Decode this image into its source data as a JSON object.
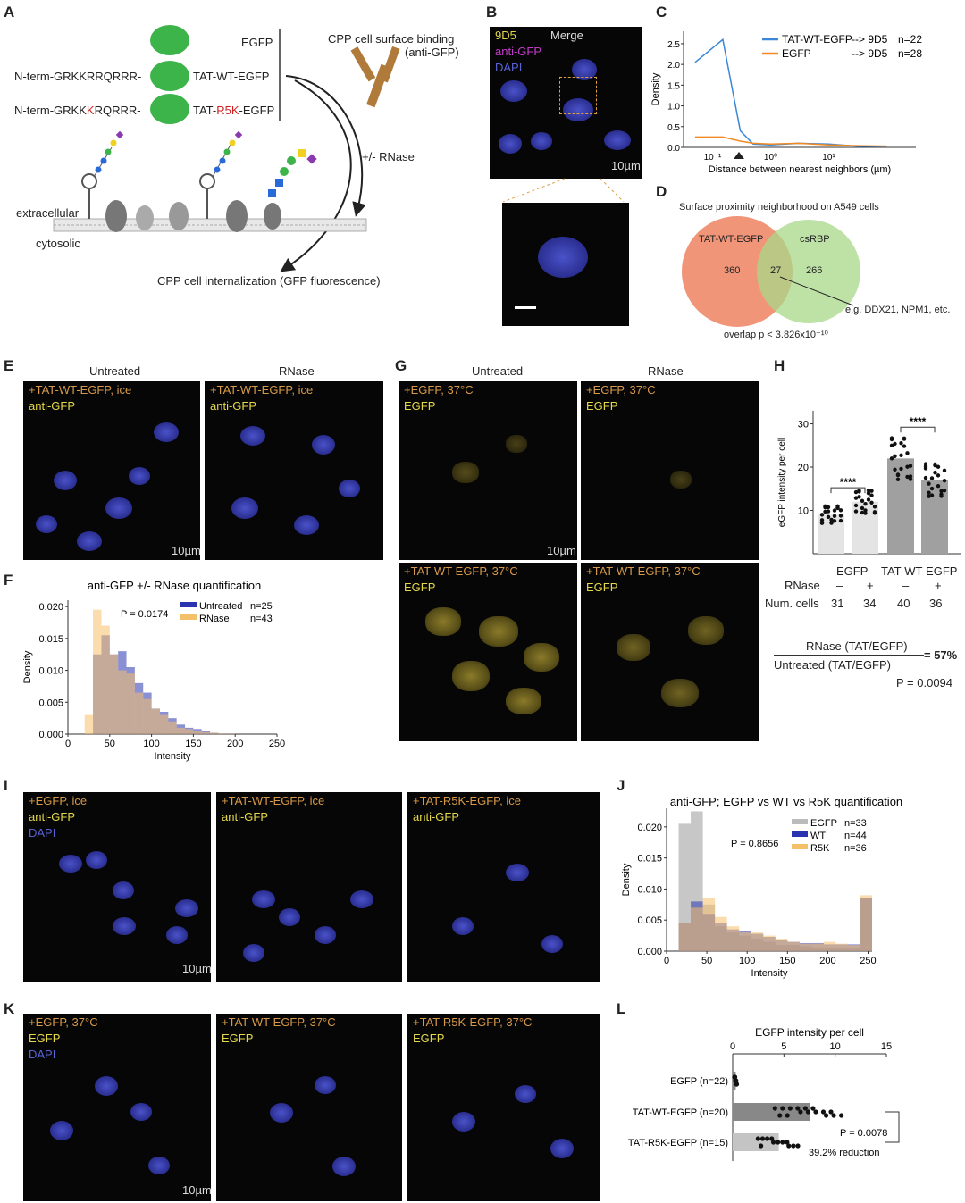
{
  "panels": {
    "A": {
      "label": "A",
      "egfp": "EGFP",
      "tat_wt": "TAT-WT-EGFP",
      "tat_r5k_prefix": "TAT-",
      "tat_r5k_mut": "R5K",
      "tat_r5k_suffix": "-EGFP",
      "seq1": "N-term-GRKKRRQRRR-",
      "seq2_pre": "N-term-GRKK",
      "seq2_mut": "K",
      "seq2_post": "RQRRR-",
      "surface_binding": "CPP cell surface binding",
      "anti_gfp": "(anti-GFP)",
      "rnase": "+/- RNase",
      "extracellular": "extracellular",
      "cytosolic": "cytosolic",
      "internalization": "CPP cell internalization (GFP fluorescence)"
    },
    "B": {
      "label": "B",
      "ch1": "9D5",
      "ch2": "anti-GFP",
      "ch3": "DAPI",
      "merge": "Merge",
      "scale": "10µm"
    },
    "C": {
      "label": "C",
      "ylabel": "Density",
      "xlabel": "Distance between nearest neighbors (µm)",
      "legend": [
        {
          "name": "TAT-WT-EGFP",
          "desc": "--> 9D5",
          "n": "n=22",
          "color": "#3a86d8"
        },
        {
          "name": "EGFP",
          "desc": "--> 9D5",
          "n": "n=28",
          "color": "#f08a24"
        }
      ],
      "yticks": [
        "0.0",
        "0.5",
        "1.0",
        "1.5",
        "2.0",
        "2.5"
      ],
      "xticks": [
        "10⁻¹",
        "10⁰",
        "10¹"
      ]
    },
    "D": {
      "label": "D",
      "title": "Surface proximity neighborhood on A549 cells",
      "left": "TAT-WT-EGFP",
      "right": "csRBP",
      "left_n": "360",
      "overlap_n": "27",
      "right_n": "266",
      "example": "e.g. DDX21, NPM1, etc.",
      "pval": "overlap p < 3.826x10⁻¹⁰"
    },
    "E": {
      "label": "E",
      "col1": "Untreated",
      "col2": "RNase",
      "l1": "+TAT-WT-EGFP, ice",
      "l2": "anti-GFP",
      "scale": "10µm"
    },
    "F": {
      "label": "F",
      "title": "anti-GFP +/- RNase quantification",
      "pval": "P = 0.0174",
      "ylabel": "Density",
      "xlabel": "Intensity",
      "legend": [
        {
          "name": "Untreated",
          "n": "n=25"
        },
        {
          "name": "RNase",
          "n": "n=43"
        }
      ],
      "yticks": [
        "0.000",
        "0.005",
        "0.010",
        "0.015",
        "0.020"
      ],
      "xticks": [
        "0",
        "50",
        "100",
        "150",
        "200",
        "250"
      ]
    },
    "G": {
      "label": "G",
      "col1": "Untreated",
      "col2": "RNase",
      "r1l1": "+EGFP, 37°C",
      "r1l2": "EGFP",
      "r2l1": "+TAT-WT-EGFP, 37°C",
      "r2l2": "EGFP",
      "scale": "10µm"
    },
    "H": {
      "label": "H",
      "ylabel": "eGFP intensity per cell",
      "yticks": [
        "10",
        "20",
        "30"
      ],
      "sig1": "****",
      "sig2": "****",
      "groups": [
        "EGFP",
        "TAT-WT-EGFP"
      ],
      "rnase_label": "RNase",
      "rnase": [
        "–",
        "+",
        "–",
        "+"
      ],
      "cells_label": "Num. cells",
      "cells": [
        "31",
        "34",
        "40",
        "36"
      ],
      "ratio_num": "RNase (TAT/EGFP)",
      "ratio_den": "Untreated (TAT/EGFP)",
      "ratio_val": "= 57%",
      "pval": "P = 0.0094"
    },
    "I": {
      "label": "I",
      "p1": "+EGFP, ice",
      "p2": "+TAT-WT-EGFP, ice",
      "p3": "+TAT-R5K-EGFP, ice",
      "ch1": "anti-GFP",
      "ch2": "DAPI",
      "scale": "10µm"
    },
    "J": {
      "label": "J",
      "title": "anti-GFP; EGFP vs WT vs R5K quantification",
      "pval": "P = 0.8656",
      "ylabel": "Density",
      "xlabel": "Intensity",
      "legend": [
        {
          "name": "EGFP",
          "n": "n=33"
        },
        {
          "name": "WT",
          "n": "n=44"
        },
        {
          "name": "R5K",
          "n": "n=36"
        }
      ],
      "yticks": [
        "0.000",
        "0.005",
        "0.010",
        "0.015",
        "0.020"
      ],
      "xticks": [
        "0",
        "50",
        "100",
        "150",
        "200",
        "250"
      ]
    },
    "K": {
      "label": "K",
      "p1": "+EGFP, 37°C",
      "p2": "+TAT-WT-EGFP, 37°C",
      "p3": "+TAT-R5K-EGFP, 37°C",
      "ch1": "EGFP",
      "ch2": "DAPI",
      "scale": "10µm"
    },
    "L": {
      "label": "L",
      "title": "EGFP intensity per cell",
      "xticks": [
        "0",
        "5",
        "10",
        "15"
      ],
      "rows": [
        "EGFP (n=22)",
        "TAT-WT-EGFP (n=20)",
        "TAT-R5K-EGFP (n=15)"
      ],
      "pval": "P = 0.0078",
      "reduction": "39.2% reduction"
    }
  },
  "chart_data": [
    {
      "id": "C",
      "type": "line",
      "xscale": "log",
      "xlabel": "Distance between nearest neighbors (µm)",
      "ylabel": "Density",
      "ylim": [
        0,
        2.8
      ],
      "series": [
        {
          "name": "TAT-WT-EGFP --> 9D5 n=22",
          "color": "#3a86d8",
          "x": [
            0.05,
            0.15,
            0.3,
            0.5,
            1,
            3,
            10,
            30,
            100
          ],
          "values": [
            2.05,
            2.6,
            0.4,
            0.08,
            0.06,
            0.1,
            0.08,
            0.03,
            0.02
          ]
        },
        {
          "name": "EGFP --> 9D5 n=28",
          "color": "#f08a24",
          "x": [
            0.05,
            0.15,
            0.3,
            0.5,
            1,
            3,
            10,
            30,
            100
          ],
          "values": [
            0.25,
            0.25,
            0.15,
            0.1,
            0.08,
            0.1,
            0.06,
            0.04,
            0.03
          ]
        }
      ]
    },
    {
      "id": "F",
      "type": "bar",
      "title": "anti-GFP +/- RNase quantification",
      "xlabel": "Intensity",
      "ylabel": "Density",
      "ylim": [
        0,
        0.021
      ],
      "bin_edges": [
        20,
        30,
        40,
        50,
        60,
        70,
        80,
        90,
        100,
        110,
        120,
        130,
        140,
        150,
        160,
        170,
        180,
        190,
        200
      ],
      "series": [
        {
          "name": "Untreated n=25",
          "values": [
            0,
            0.0125,
            0.0155,
            0.0125,
            0.013,
            0.0105,
            0.008,
            0.0065,
            0.004,
            0.0035,
            0.0025,
            0.0015,
            0.001,
            0.0008,
            0.0005,
            0.0002,
            0.0001,
            0.0001
          ]
        },
        {
          "name": "RNase n=43",
          "values": [
            0.003,
            0.0195,
            0.017,
            0.0125,
            0.01,
            0.0095,
            0.0065,
            0.0055,
            0.004,
            0.003,
            0.002,
            0.001,
            0.0008,
            0.0005,
            0.0003,
            0.0002,
            0.0001,
            0.0001
          ]
        }
      ]
    },
    {
      "id": "H",
      "type": "bar",
      "ylabel": "eGFP intensity per cell",
      "ylim": [
        0,
        30
      ],
      "categories": [
        "EGFP –",
        "EGFP +",
        "TAT-WT-EGFP –",
        "TAT-WT-EGFP +"
      ],
      "values": [
        9,
        12,
        22,
        17
      ]
    },
    {
      "id": "J",
      "type": "bar",
      "title": "anti-GFP; EGFP vs WT vs R5K quantification",
      "xlabel": "Intensity",
      "ylabel": "Density",
      "ylim": [
        0,
        0.022
      ],
      "bin_edges": [
        15,
        30,
        45,
        60,
        75,
        90,
        105,
        120,
        135,
        150,
        165,
        180,
        195,
        210,
        225,
        240,
        255
      ],
      "series": [
        {
          "name": "EGFP n=33",
          "values": [
            0.0205,
            0.0225,
            0.0075,
            0.004,
            0.003,
            0.0025,
            0.002,
            0.0015,
            0.001,
            0.001,
            0.0008,
            0.0006,
            0.0005,
            0.0005,
            0.0005,
            0.0085
          ]
        },
        {
          "name": "WT n=44",
          "values": [
            0.0045,
            0.008,
            0.006,
            0.0045,
            0.0035,
            0.0033,
            0.0028,
            0.0023,
            0.0018,
            0.0015,
            0.0013,
            0.0013,
            0.0011,
            0.0011,
            0.0011,
            0.0085
          ]
        },
        {
          "name": "R5K n=36",
          "values": [
            0.0045,
            0.007,
            0.0085,
            0.0055,
            0.004,
            0.003,
            0.003,
            0.0025,
            0.002,
            0.0015,
            0.0012,
            0.0012,
            0.0015,
            0.0012,
            0.001,
            0.009
          ]
        }
      ]
    },
    {
      "id": "L",
      "type": "bar",
      "title": "EGFP intensity per cell",
      "xlim": [
        0,
        15
      ],
      "categories": [
        "EGFP (n=22)",
        "TAT-WT-EGFP (n=20)",
        "TAT-R5K-EGFP (n=15)"
      ],
      "values": [
        0.3,
        7.5,
        4.5
      ]
    }
  ]
}
